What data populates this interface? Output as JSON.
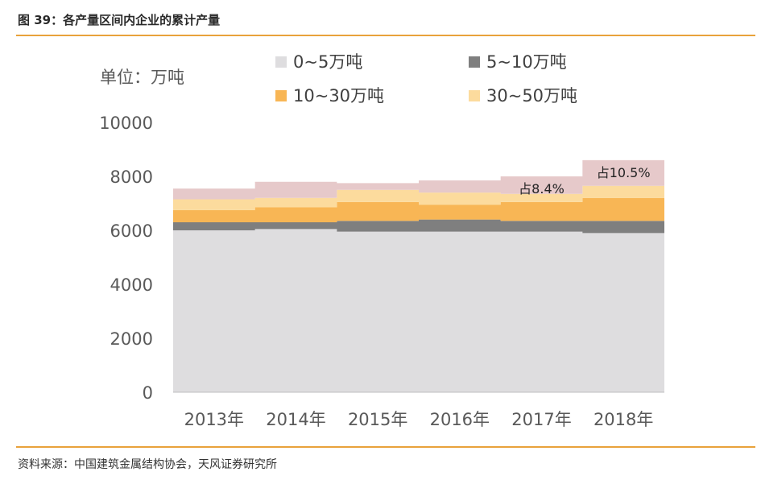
{
  "figure": {
    "title": "图 39：各产量区间内企业的累计产量",
    "source": "资料来源：中国建筑金属结构协会，天风证券研究所"
  },
  "chart_data": {
    "type": "area",
    "ylabel": "单位：万吨",
    "ylim": [
      0,
      10000
    ],
    "yticks": [
      0,
      2000,
      4000,
      6000,
      8000,
      10000
    ],
    "categories": [
      "2013年",
      "2014年",
      "2015年",
      "2016年",
      "2017年",
      "2018年"
    ],
    "stacked": true,
    "legend_position": "top",
    "series": [
      {
        "name": "0~5万吨",
        "color": "#dedddf",
        "values": [
          6000,
          6050,
          5950,
          5950,
          5950,
          5900
        ]
      },
      {
        "name": "5~10万吨",
        "color": "#7f7f7f",
        "values": [
          300,
          250,
          400,
          450,
          400,
          450
        ]
      },
      {
        "name": "10~30万吨",
        "color": "#f8b655",
        "values": [
          450,
          550,
          700,
          550,
          700,
          850
        ]
      },
      {
        "name": "30~50万吨",
        "color": "#fcdb9d",
        "values": [
          400,
          350,
          450,
          450,
          300,
          450
        ]
      },
      {
        "name": "",
        "color": "#e6c9ca",
        "values": [
          400,
          600,
          250,
          450,
          650,
          950
        ]
      }
    ],
    "annotations": [
      {
        "category": "2017年",
        "text": "占8.4%"
      },
      {
        "category": "2018年",
        "text": "占10.5%"
      }
    ],
    "grid": false
  }
}
